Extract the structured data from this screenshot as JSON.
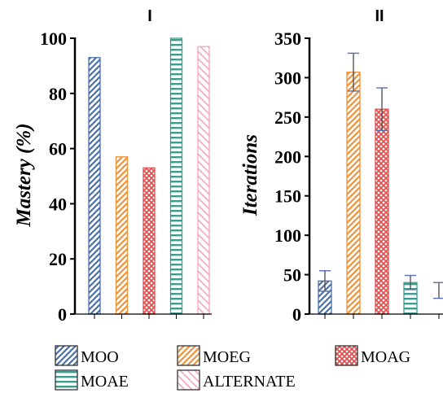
{
  "chart_data": [
    {
      "type": "bar",
      "panel": "I",
      "ylabel": "Mastery (%)",
      "ylim": [
        0,
        100
      ],
      "yticks": [
        0,
        20,
        40,
        60,
        80,
        100
      ],
      "grid": false,
      "error_bars": false,
      "categories": [
        "MOO",
        "MOEG",
        "MOAG",
        "MOAE",
        "ALTERNATE"
      ],
      "values": [
        93,
        57,
        53,
        100,
        97
      ]
    },
    {
      "type": "bar",
      "panel": "II",
      "ylabel": "Iterations",
      "ylim": [
        0,
        350
      ],
      "yticks": [
        0,
        50,
        100,
        150,
        200,
        250,
        300,
        350
      ],
      "grid": false,
      "error_bars": true,
      "categories": [
        "MOO",
        "MOEG",
        "MOAG",
        "MOAE",
        "ALTERNATE"
      ],
      "values": [
        42,
        307,
        260,
        40,
        30
      ],
      "errors": [
        13,
        24,
        27,
        9,
        10
      ]
    }
  ],
  "legend": {
    "placement": "bottom",
    "entries": [
      {
        "label": "MOO",
        "pattern": "diagonal-hatch",
        "color": "#4a6fa8"
      },
      {
        "label": "MOEG",
        "pattern": "diagonal-hatch",
        "color": "#f0923a"
      },
      {
        "label": "MOAG",
        "pattern": "crosshatch",
        "color": "#e0504f"
      },
      {
        "label": "MOAE",
        "pattern": "horizontal-lines",
        "color": "#3f9c8e"
      },
      {
        "label": "ALTERNATE",
        "pattern": "reverse-diagonal",
        "color": "#f4a6b6"
      }
    ]
  },
  "colors": {
    "axis": "#000000",
    "error_bar": "#555555"
  }
}
